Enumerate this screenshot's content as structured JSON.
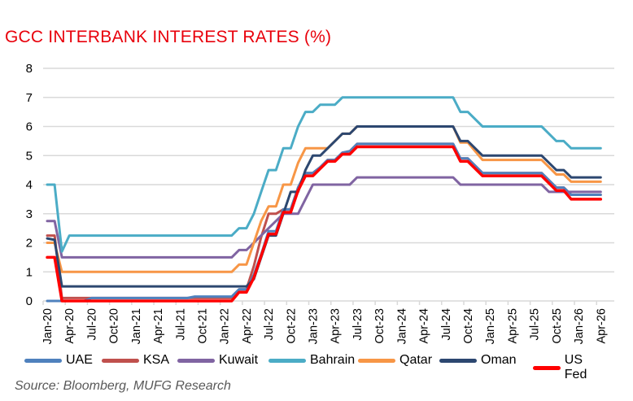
{
  "chart_data": {
    "type": "line",
    "title": "GCC INTERBANK INTEREST RATES (%)",
    "xlabel": "",
    "ylabel": "",
    "ylim": [
      0,
      8
    ],
    "yticks": [
      "0",
      "1",
      "2",
      "3",
      "4",
      "5",
      "6",
      "7",
      "8"
    ],
    "x_unit": "months since Jan-20",
    "xlim": [
      0,
      75
    ],
    "xtick_labels": [
      "Jan-20",
      "Apr-20",
      "Jul-20",
      "Oct-20",
      "Jan-21",
      "Apr-21",
      "Jul-21",
      "Oct-21",
      "Jan-22",
      "Apr-22",
      "Jul-22",
      "Oct-22",
      "Jan-23",
      "Apr-23",
      "Jul-23",
      "Oct-23",
      "Jan-24",
      "Apr-24",
      "Jul-24",
      "Oct-24",
      "Jan-25",
      "Apr-25",
      "Jul-25",
      "Oct-25",
      "Jan-26",
      "Apr-26"
    ],
    "grid": true,
    "legend_position": "bottom",
    "series": [
      {
        "name": "KSA",
        "color": "#C0504D",
        "points": [
          [
            0,
            2.25
          ],
          [
            1,
            2.25
          ],
          [
            2,
            0.1
          ],
          [
            25,
            0.1
          ],
          [
            26,
            0.4
          ],
          [
            27,
            0.4
          ],
          [
            28,
            1.2
          ],
          [
            29,
            2.2
          ],
          [
            30,
            3
          ],
          [
            31,
            3
          ],
          [
            32,
            3.15
          ],
          [
            33,
            3.15
          ],
          [
            34,
            3.9
          ],
          [
            35,
            4.4
          ],
          [
            36,
            4.4
          ],
          [
            37,
            4.6
          ],
          [
            38,
            4.85
          ],
          [
            39,
            4.85
          ],
          [
            40,
            5.1
          ],
          [
            41,
            5.15
          ],
          [
            42,
            5.4
          ],
          [
            55,
            5.4
          ],
          [
            56,
            4.9
          ],
          [
            57,
            4.9
          ],
          [
            59,
            4.4
          ],
          [
            67,
            4.4
          ],
          [
            69,
            3.9
          ],
          [
            70,
            3.9
          ],
          [
            71,
            3.65
          ],
          [
            75,
            3.65
          ]
        ]
      },
      {
        "name": "UAE",
        "color": "#4F81BD",
        "points": [
          [
            0,
            0
          ],
          [
            5,
            0
          ],
          [
            6,
            0.1
          ],
          [
            19,
            0.1
          ],
          [
            20,
            0.15
          ],
          [
            25,
            0.15
          ],
          [
            26,
            0.4
          ],
          [
            27,
            0.4
          ],
          [
            28,
            0.9
          ],
          [
            29,
            1.6
          ],
          [
            30,
            2.4
          ],
          [
            31,
            2.4
          ],
          [
            32,
            3.15
          ],
          [
            33,
            3.15
          ],
          [
            34,
            3.9
          ],
          [
            35,
            4.4
          ],
          [
            36,
            4.4
          ],
          [
            37,
            4.6
          ],
          [
            38,
            4.85
          ],
          [
            39,
            4.85
          ],
          [
            40,
            5.1
          ],
          [
            41,
            5.15
          ],
          [
            42,
            5.4
          ],
          [
            55,
            5.4
          ],
          [
            56,
            4.9
          ],
          [
            57,
            4.9
          ],
          [
            59,
            4.4
          ],
          [
            67,
            4.4
          ],
          [
            69,
            3.9
          ],
          [
            70,
            3.9
          ],
          [
            71,
            3.65
          ],
          [
            75,
            3.65
          ]
        ]
      },
      {
        "name": "Kuwait",
        "color": "#8064A2",
        "points": [
          [
            0,
            2.75
          ],
          [
            1,
            2.75
          ],
          [
            2,
            1.5
          ],
          [
            25,
            1.5
          ],
          [
            26,
            1.75
          ],
          [
            27,
            1.75
          ],
          [
            28,
            2
          ],
          [
            29,
            2.25
          ],
          [
            30,
            2.5
          ],
          [
            31,
            2.75
          ],
          [
            32,
            3
          ],
          [
            34,
            3
          ],
          [
            35,
            3.5
          ],
          [
            36,
            4
          ],
          [
            41,
            4
          ],
          [
            42,
            4.25
          ],
          [
            55,
            4.25
          ],
          [
            56,
            4
          ],
          [
            67,
            4
          ],
          [
            68,
            3.75
          ],
          [
            75,
            3.75
          ]
        ]
      },
      {
        "name": "Bahrain",
        "color": "#4BACC6",
        "points": [
          [
            0,
            4
          ],
          [
            1,
            4
          ],
          [
            2,
            1.7
          ],
          [
            3,
            2.25
          ],
          [
            25,
            2.25
          ],
          [
            26,
            2.5
          ],
          [
            27,
            2.5
          ],
          [
            28,
            3
          ],
          [
            29,
            3.75
          ],
          [
            30,
            4.5
          ],
          [
            31,
            4.5
          ],
          [
            32,
            5.25
          ],
          [
            33,
            5.25
          ],
          [
            34,
            6
          ],
          [
            35,
            6.5
          ],
          [
            36,
            6.5
          ],
          [
            37,
            6.75
          ],
          [
            39,
            6.75
          ],
          [
            40,
            7
          ],
          [
            55,
            7
          ],
          [
            56,
            6.5
          ],
          [
            57,
            6.5
          ],
          [
            59,
            6
          ],
          [
            67,
            6
          ],
          [
            69,
            5.5
          ],
          [
            70,
            5.5
          ],
          [
            71,
            5.25
          ],
          [
            75,
            5.25
          ]
        ]
      },
      {
        "name": "Qatar",
        "color": "#F79646",
        "points": [
          [
            0,
            2
          ],
          [
            1,
            2
          ],
          [
            2,
            1
          ],
          [
            25,
            1
          ],
          [
            26,
            1.25
          ],
          [
            27,
            1.25
          ],
          [
            28,
            2
          ],
          [
            29,
            2.75
          ],
          [
            30,
            3.25
          ],
          [
            31,
            3.25
          ],
          [
            32,
            4
          ],
          [
            33,
            4
          ],
          [
            34,
            4.75
          ],
          [
            35,
            5.25
          ],
          [
            37,
            5.25
          ],
          [
            38,
            5.25
          ],
          [
            39,
            5.5
          ],
          [
            40,
            5.75
          ],
          [
            41,
            5.75
          ],
          [
            42,
            6
          ],
          [
            55,
            6
          ],
          [
            56,
            5.45
          ],
          [
            57,
            5.45
          ],
          [
            59,
            4.85
          ],
          [
            67,
            4.85
          ],
          [
            69,
            4.35
          ],
          [
            70,
            4.35
          ],
          [
            71,
            4.1
          ],
          [
            75,
            4.1
          ]
        ]
      },
      {
        "name": "Oman",
        "color": "#2C4770",
        "points": [
          [
            0,
            2.15
          ],
          [
            1,
            2.1
          ],
          [
            2,
            0.5
          ],
          [
            27,
            0.5
          ],
          [
            28,
            0.75
          ],
          [
            29,
            1.5
          ],
          [
            30,
            2.25
          ],
          [
            31,
            2.25
          ],
          [
            32,
            3
          ],
          [
            33,
            3.75
          ],
          [
            34,
            3.75
          ],
          [
            35,
            4.5
          ],
          [
            36,
            5
          ],
          [
            37,
            5
          ],
          [
            38,
            5.25
          ],
          [
            39,
            5.5
          ],
          [
            40,
            5.75
          ],
          [
            41,
            5.75
          ],
          [
            42,
            6
          ],
          [
            55,
            6
          ],
          [
            56,
            5.5
          ],
          [
            57,
            5.5
          ],
          [
            59,
            5
          ],
          [
            67,
            5
          ],
          [
            69,
            4.5
          ],
          [
            70,
            4.5
          ],
          [
            71,
            4.25
          ],
          [
            75,
            4.25
          ]
        ]
      },
      {
        "name": "US Fed",
        "color": "#FF0000",
        "points": [
          [
            0,
            1.5
          ],
          [
            1,
            1.5
          ],
          [
            2,
            0
          ],
          [
            25,
            0
          ],
          [
            26,
            0.3
          ],
          [
            27,
            0.3
          ],
          [
            28,
            0.8
          ],
          [
            29,
            1.55
          ],
          [
            30,
            2.3
          ],
          [
            31,
            2.3
          ],
          [
            32,
            3.05
          ],
          [
            33,
            3.05
          ],
          [
            34,
            3.8
          ],
          [
            35,
            4.3
          ],
          [
            36,
            4.3
          ],
          [
            37,
            4.55
          ],
          [
            38,
            4.8
          ],
          [
            39,
            4.8
          ],
          [
            40,
            5.05
          ],
          [
            41,
            5.05
          ],
          [
            42,
            5.3
          ],
          [
            55,
            5.3
          ],
          [
            56,
            4.8
          ],
          [
            57,
            4.8
          ],
          [
            59,
            4.3
          ],
          [
            67,
            4.3
          ],
          [
            69,
            3.8
          ],
          [
            70,
            3.8
          ],
          [
            71,
            3.5
          ],
          [
            75,
            3.5
          ]
        ]
      }
    ],
    "legend_order": [
      "UAE",
      "KSA",
      "Kuwait",
      "Bahrain",
      "Qatar",
      "Oman",
      "US Fed"
    ],
    "source": "Source: Bloomberg, MUFG Research"
  }
}
